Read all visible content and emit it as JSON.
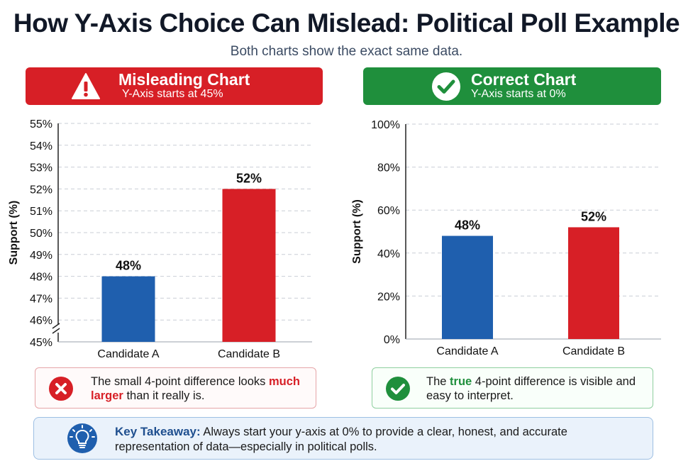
{
  "header": {
    "title": "How Y-Axis Choice Can Mislead: Political Poll Example",
    "subtitle": "Both charts show the exact same data."
  },
  "left_panel": {
    "banner_title": "Misleading Chart",
    "banner_subtitle": "Y-Axis starts at 45%",
    "banner_color": "#d71f26",
    "icon": "warning-icon",
    "note_before": "The small 4-point difference looks ",
    "note_emphasis": "much larger",
    "note_after": " than it really is.",
    "note_icon": "x-circle-icon"
  },
  "right_panel": {
    "banner_title": "Correct Chart",
    "banner_subtitle": "Y-Axis starts at 0%",
    "banner_color": "#1f8f3c",
    "icon": "checkmark-icon",
    "note_before": "The ",
    "note_emphasis": "true",
    "note_after": " 4-point difference is visible and easy to interpret.",
    "note_icon": "check-circle-icon"
  },
  "takeaway": {
    "label": "Key Takeaway:",
    "text": " Always start your y-axis at 0% to provide a clear, honest, and accurate representation of data—especially in political polls.",
    "icon": "lightbulb-icon"
  },
  "chart_data": [
    {
      "type": "bar",
      "title": "Misleading Chart",
      "categories": [
        "Candidate A",
        "Candidate B"
      ],
      "values": [
        48,
        52
      ],
      "data_labels": [
        "48%",
        "52%"
      ],
      "colors": [
        "#1f5fae",
        "#d71f26"
      ],
      "ylabel": "Support (%)",
      "ylim": [
        45,
        55
      ],
      "yticks": [
        45,
        46,
        47,
        48,
        49,
        50,
        51,
        52,
        53,
        54,
        55
      ],
      "ytick_labels": [
        "45%",
        "46%",
        "47%",
        "48%",
        "49%",
        "50%",
        "51%",
        "52%",
        "53%",
        "54%",
        "55%"
      ],
      "axis_break": true,
      "grid": true
    },
    {
      "type": "bar",
      "title": "Correct Chart",
      "categories": [
        "Candidate A",
        "Candidate B"
      ],
      "values": [
        48,
        52
      ],
      "data_labels": [
        "48%",
        "52%"
      ],
      "colors": [
        "#1f5fae",
        "#d71f26"
      ],
      "ylabel": "Support (%)",
      "ylim": [
        0,
        100
      ],
      "yticks": [
        0,
        20,
        40,
        60,
        80,
        100
      ],
      "ytick_labels": [
        "0%",
        "20%",
        "40%",
        "60%",
        "80%",
        "100%"
      ],
      "axis_break": false,
      "grid": true
    }
  ]
}
